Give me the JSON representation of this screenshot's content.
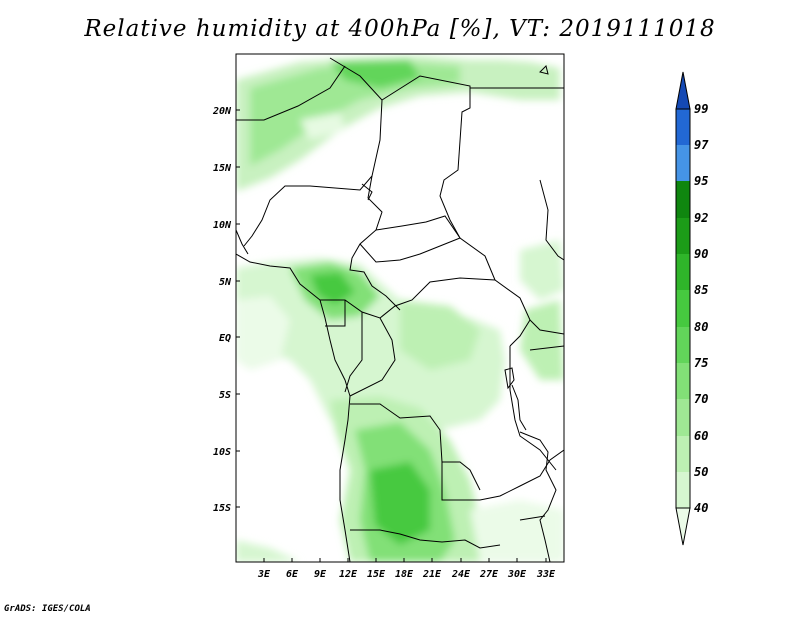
{
  "title": "Relative humidity at 400hPa [%], VT: 2019111018",
  "credit": "GrADS: IGES/COLA",
  "map": {
    "lat_labels": [
      "20N",
      "15N",
      "10N",
      "5N",
      "EQ",
      "5S",
      "10S",
      "15S"
    ],
    "lon_labels": [
      "3E",
      "6E",
      "9E",
      "12E",
      "15E",
      "18E",
      "21E",
      "24E",
      "27E",
      "30E",
      "33E"
    ]
  },
  "colorbar": {
    "levels": [
      "40",
      "50",
      "60",
      "70",
      "75",
      "80",
      "85",
      "90",
      "92",
      "95",
      "97",
      "99"
    ],
    "colors": [
      "#ebfbe8",
      "#d6f6d0",
      "#bdf0b3",
      "#9fe894",
      "#82e077",
      "#62d55a",
      "#46c93f",
      "#2fb52a",
      "#1c9c18",
      "#0f860f",
      "#4594e6",
      "#2268d4",
      "#1449b4"
    ]
  }
}
